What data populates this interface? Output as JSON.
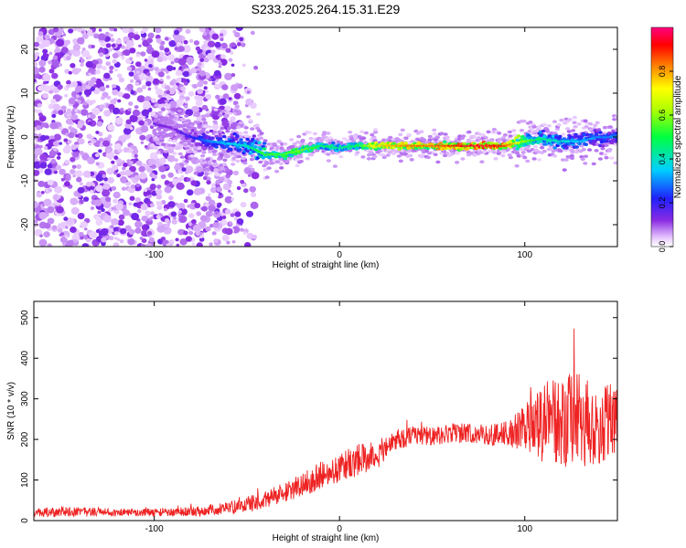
{
  "title": "S233.2025.264.15.31.E29",
  "chart_data": [
    {
      "type": "heatmap",
      "title": "S233.2025.264.15.31.E29",
      "xlabel": "Height of straight line (km)",
      "ylabel": "Frequency (Hz)",
      "xlim": [
        -165,
        150
      ],
      "ylim": [
        -25,
        25
      ],
      "x_ticks": [
        -100,
        0,
        100
      ],
      "y_ticks": [
        20,
        10,
        0,
        -10,
        -20
      ],
      "colorbar": {
        "label": "Normalized spectral amplitude",
        "range": [
          0,
          1
        ],
        "ticks": [
          0.0,
          0.2,
          0.4,
          0.6,
          0.8
        ]
      },
      "ridge": {
        "x": [
          -100,
          -90,
          -80,
          -70,
          -60,
          -50,
          -40,
          -30,
          -20,
          -10,
          0,
          10,
          20,
          30,
          40,
          50,
          60,
          70,
          80,
          90,
          100,
          110,
          120,
          130,
          140,
          150
        ],
        "frequency": [
          3,
          2,
          0,
          -1,
          -1.5,
          -2,
          -4,
          -4,
          -3,
          -2,
          -2.5,
          -2,
          -2,
          -2,
          -2,
          -2,
          -2,
          -2,
          -2,
          -2,
          -1,
          -0.5,
          -1,
          -1,
          0,
          0
        ],
        "amplitude": [
          0.15,
          0.12,
          0.2,
          0.3,
          0.35,
          0.4,
          0.55,
          0.55,
          0.6,
          0.5,
          0.45,
          0.5,
          0.75,
          0.8,
          0.85,
          0.85,
          0.9,
          0.95,
          0.95,
          0.9,
          0.6,
          0.45,
          0.4,
          0.35,
          0.3,
          0.3
        ]
      }
    },
    {
      "type": "line",
      "xlabel": "Height of straight line (km)",
      "ylabel": "SNR (10 * v/v)",
      "xlim": [
        -165,
        150
      ],
      "ylim": [
        0,
        540
      ],
      "x_ticks": [
        -100,
        0,
        100
      ],
      "y_ticks": [
        0,
        100,
        200,
        300,
        400,
        500
      ],
      "color": "#ee2222",
      "series": [
        {
          "name": "SNR",
          "x": [
            -165,
            -140,
            -120,
            -100,
            -80,
            -60,
            -50,
            -40,
            -30,
            -20,
            -10,
            0,
            10,
            20,
            25,
            30,
            40,
            50,
            60,
            70,
            80,
            90,
            100,
            105,
            110,
            120,
            125,
            130,
            140,
            150
          ],
          "values": [
            20,
            22,
            20,
            20,
            22,
            30,
            40,
            50,
            70,
            90,
            110,
            130,
            150,
            160,
            180,
            200,
            210,
            210,
            215,
            215,
            210,
            215,
            230,
            235,
            240,
            245,
            250,
            240,
            235,
            250
          ],
          "noise": [
            12,
            12,
            10,
            10,
            12,
            15,
            20,
            22,
            25,
            30,
            35,
            35,
            40,
            35,
            30,
            28,
            25,
            25,
            25,
            25,
            25,
            30,
            60,
            80,
            100,
            110,
            120,
            120,
            100,
            90
          ]
        }
      ]
    }
  ]
}
